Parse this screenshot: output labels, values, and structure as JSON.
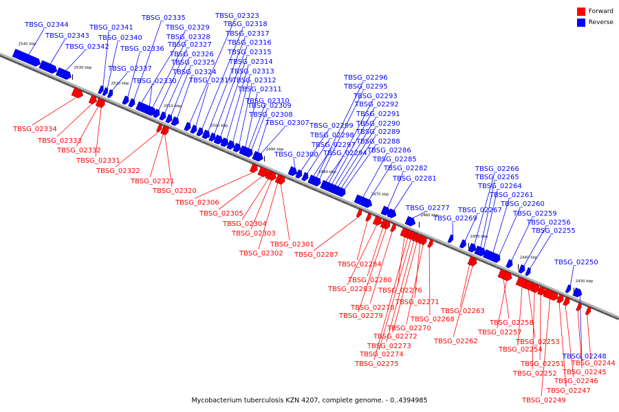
{
  "title": "Mycobacterium tuberculosis KZN 4207, complete genome. - 0..4394985",
  "colors": {
    "forward": "#ff0000",
    "reverse": "#0000ff",
    "axis": "#9a9a9a",
    "tick": "#000000"
  },
  "legend": [
    {
      "label": "Forward",
      "color": "#ff0000"
    },
    {
      "label": "Reverse",
      "color": "#0000ff"
    }
  ],
  "scale_labels": [
    "2540 kbp",
    "2530 kbp",
    "2520 kbp",
    "2510 kbp",
    "2500 kbp",
    "2490 kbp",
    "2480 kbp",
    "2470 kbp",
    "2460 kbp",
    "2450 kbp",
    "2440 kbp",
    "2430 kbp"
  ],
  "reverse_genes": [
    "TBSG_02344",
    "TBSG_02343",
    "TBSG_02342",
    "TBSG_02341",
    "TBSG_02340",
    "TBSG_02337",
    "TBSG_02336",
    "TBSG_02335",
    "TBSG_02330",
    "TBSG_02329",
    "TBSG_02328",
    "TBSG_02327",
    "TBSG_02326",
    "TBSG_02325",
    "TBSG_02324",
    "TBSG_02323",
    "TBSG_02319",
    "TBSG_02318",
    "TBSG_02317",
    "TBSG_02316",
    "TBSG_02315",
    "TBSG_02314",
    "TBSG_02313",
    "TBSG_02312",
    "TBSG_02311",
    "TBSG_02310",
    "TBSG_02309",
    "TBSG_02308",
    "TBSG_02307",
    "TBSG_02300",
    "TBSG_02299",
    "TBSG_02298",
    "TBSG_02297",
    "TBSG_02296",
    "TBSG_02295",
    "TBSG_02294",
    "TBSG_02293",
    "TBSG_02292",
    "TBSG_02291",
    "TBSG_02290",
    "TBSG_02289",
    "TBSG_02288",
    "TBSG_02286",
    "TBSG_02285",
    "TBSG_02282",
    "TBSG_02281",
    "TBSG_02277",
    "TBSG_02269",
    "TBSG_02267",
    "TBSG_02266",
    "TBSG_02265",
    "TBSG_02264",
    "TBSG_02261",
    "TBSG_02260",
    "TBSG_02259",
    "TBSG_02256",
    "TBSG_02255",
    "TBSG_02250",
    "TBSG_02248"
  ],
  "forward_genes": [
    "TBSG_02334",
    "TBSG_02333",
    "TBSG_02332",
    "TBSG_02331",
    "TBSG_02322",
    "TBSG_02321",
    "TBSG_02320",
    "TBSG_02306",
    "TBSG_02305",
    "TBSG_02304",
    "TBSG_02303",
    "TBSG_02302",
    "TBSG_02301",
    "TBSG_02287",
    "TBSG_02284",
    "TBSG_02283",
    "TBSG_02280",
    "TBSG_02279",
    "TBSG_02278",
    "TBSG_02276",
    "TBSG_02275",
    "TBSG_02274",
    "TBSG_02273",
    "TBSG_02272",
    "TBSG_02271",
    "TBSG_02270",
    "TBSG_02268",
    "TBSG_02263",
    "TBSG_02262",
    "TBSG_02258",
    "TBSG_02257",
    "TBSG_02254",
    "TBSG_02253",
    "TBSG_02252",
    "TBSG_02251",
    "TBSG_02249",
    "TBSG_02247",
    "TBSG_02246",
    "TBSG_02245",
    "TBSG_02244"
  ]
}
